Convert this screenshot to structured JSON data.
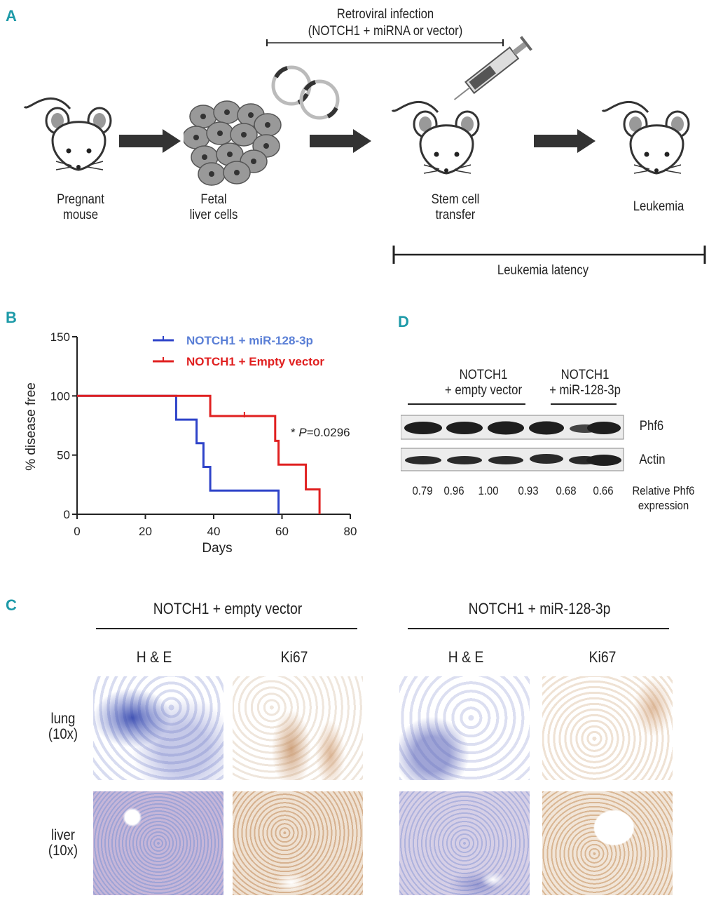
{
  "panels": {
    "a": "A",
    "b": "B",
    "c": "C",
    "d": "D"
  },
  "panel_a": {
    "header_line1": "Retroviral infection",
    "header_line2": "(NOTCH1 + miRNA or vector)",
    "steps": [
      {
        "line1": "Pregnant",
        "line2": "mouse"
      },
      {
        "line1": "Fetal",
        "line2": "liver cells"
      },
      {
        "line1": "Stem cell",
        "line2": "transfer"
      },
      {
        "line1": "Leukemia",
        "line2": ""
      }
    ],
    "latency_label": "Leukemia latency"
  },
  "chart_data": {
    "type": "line",
    "subtype": "kaplan-meier",
    "xlabel": "Days",
    "ylabel": "% disease free",
    "xlim": [
      0,
      80
    ],
    "ylim": [
      0,
      150
    ],
    "xticks": [
      "0",
      "20",
      "40",
      "60",
      "80"
    ],
    "yticks": [
      "0",
      "50",
      "100",
      "150"
    ],
    "annotation": "*P=0.0296",
    "legend_position": "top-right",
    "series": [
      {
        "name": "NOTCH1 + miR-128-3p",
        "color": "#2e43c9",
        "legend_color": "#5a7fd6",
        "steps": [
          [
            0,
            100
          ],
          [
            29,
            100
          ],
          [
            29,
            80
          ],
          [
            35,
            80
          ],
          [
            35,
            60
          ],
          [
            37,
            60
          ],
          [
            37,
            40
          ],
          [
            39,
            40
          ],
          [
            39,
            20
          ],
          [
            59,
            20
          ],
          [
            59,
            0
          ]
        ],
        "censored": []
      },
      {
        "name": "NOTCH1 + Empty vector",
        "color": "#e02020",
        "legend_color": "#e02020",
        "steps": [
          [
            0,
            100
          ],
          [
            39,
            100
          ],
          [
            39,
            83
          ],
          [
            58,
            83
          ],
          [
            58,
            62
          ],
          [
            59,
            62
          ],
          [
            59,
            42
          ],
          [
            67,
            42
          ],
          [
            67,
            21
          ],
          [
            71,
            21
          ],
          [
            71,
            0
          ]
        ],
        "censored": [
          [
            49,
            83
          ]
        ]
      }
    ]
  },
  "panel_c": {
    "groups": [
      "NOTCH1 + empty vector",
      "NOTCH1 + miR-128-3p"
    ],
    "stains": [
      "H & E",
      "Ki67",
      "H & E",
      "Ki67"
    ],
    "rows": [
      {
        "tissue": "lung",
        "mag": "(10x)"
      },
      {
        "tissue": "liver",
        "mag": "(10x)"
      }
    ]
  },
  "panel_d": {
    "group1_line1": "NOTCH1",
    "group1_line2": "+ empty vector",
    "group2_line1": "NOTCH1",
    "group2_line2": "+ miR-128-3p",
    "blots": [
      "Phf6",
      "Actin"
    ],
    "values": [
      "0.79",
      "0.96",
      "1.00",
      "0.93",
      "0.68",
      "0.66"
    ],
    "value_label_line1": "Relative Phf6",
    "value_label_line2": "expression"
  }
}
